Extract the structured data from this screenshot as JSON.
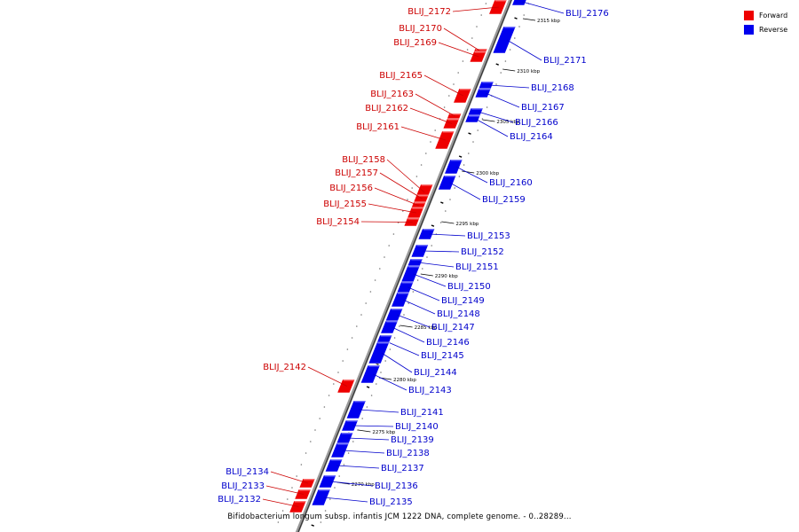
{
  "legend": [
    {
      "label": "Forward",
      "color": "#ee0000"
    },
    {
      "label": "Reverse",
      "color": "#0000ee"
    }
  ],
  "caption": "Bifidobacterium longum subsp. infantis JCM 1222 DNA, complete genome. - 0..28289...",
  "ticks": [
    "2315 kbp",
    "2310 kbp",
    "2305 kbp",
    "2300 kbp",
    "2295 kbp",
    "2290 kbp",
    "2285 kbp",
    "2280 kbp",
    "2275 kbp",
    "2270 kbp"
  ],
  "forward_genes": [
    "BLIJ_2172",
    "BLIJ_2170",
    "BLIJ_2169",
    "BLIJ_2165",
    "BLIJ_2163",
    "BLIJ_2162",
    "BLIJ_2161",
    "BLIJ_2158",
    "BLIJ_2157",
    "BLIJ_2156",
    "BLIJ_2155",
    "BLIJ_2154",
    "BLIJ_2142",
    "BLIJ_2134",
    "BLIJ_2133",
    "BLIJ_2132"
  ],
  "reverse_genes": [
    "BLIJ_2176",
    "BLIJ_2171",
    "BLIJ_2168",
    "BLIJ_2167",
    "BLIJ_2166",
    "BLIJ_2164",
    "BLIJ_2160",
    "BLIJ_2159",
    "BLIJ_2153",
    "BLIJ_2152",
    "BLIJ_2151",
    "BLIJ_2150",
    "BLIJ_2149",
    "BLIJ_2148",
    "BLIJ_2147",
    "BLIJ_2146",
    "BLIJ_2145",
    "BLIJ_2144",
    "BLIJ_2143",
    "BLIJ_2141",
    "BLIJ_2140",
    "BLIJ_2139",
    "BLIJ_2138",
    "BLIJ_2137",
    "BLIJ_2136",
    "BLIJ_2135"
  ]
}
